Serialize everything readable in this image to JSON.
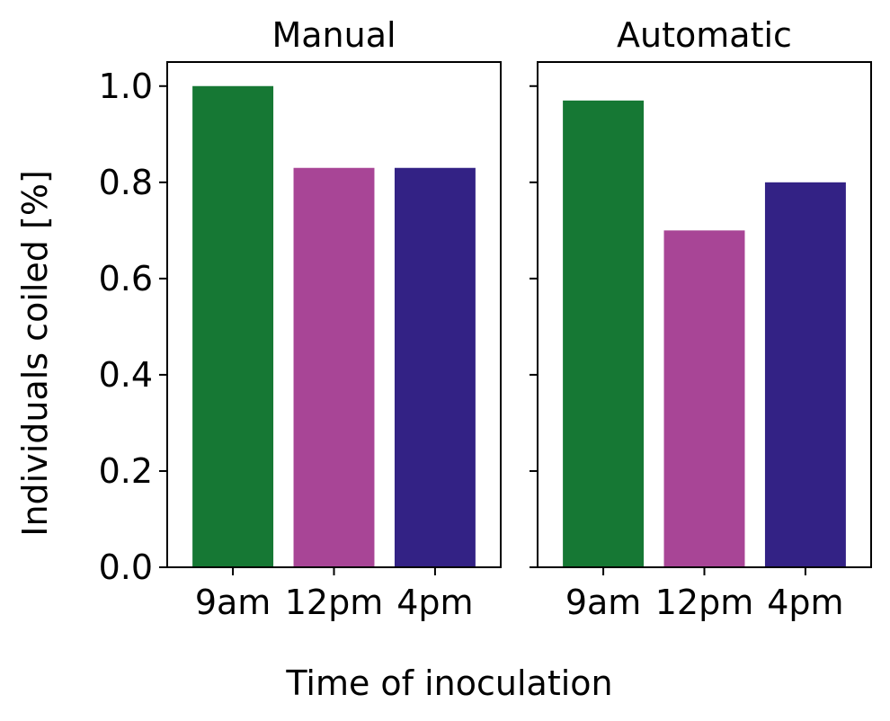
{
  "chart_data": {
    "type": "bar",
    "ylabel": "Individuals coiled [%]",
    "xlabel": "Time of inoculation",
    "ylim": [
      0,
      1.05
    ],
    "yticks": [
      "0.0",
      "0.2",
      "0.4",
      "0.6",
      "0.8",
      "1.0"
    ],
    "categories": [
      "9am",
      "12pm",
      "4pm"
    ],
    "colors": [
      "#167834",
      "#a84596",
      "#332285"
    ],
    "grid": false,
    "legend": "none",
    "panels": [
      {
        "title": "Manual",
        "values": [
          1.0,
          0.83,
          0.83
        ]
      },
      {
        "title": "Automatic",
        "values": [
          0.97,
          0.7,
          0.8
        ]
      }
    ]
  }
}
